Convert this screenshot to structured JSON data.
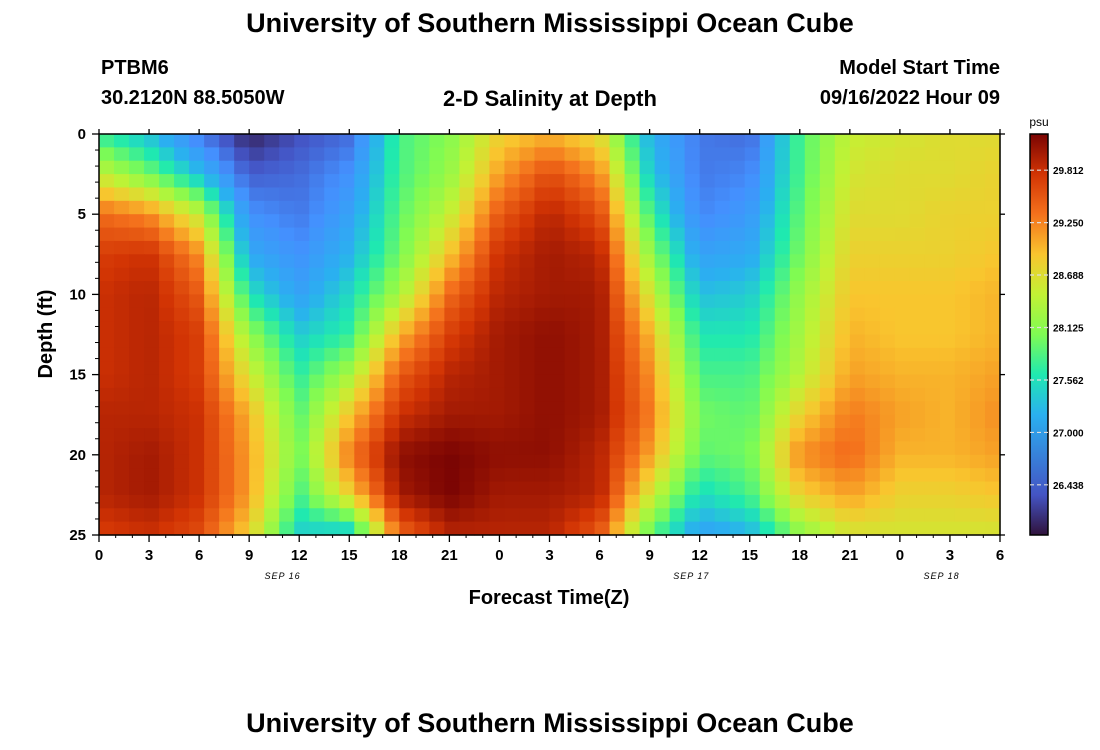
{
  "header": {
    "title": "University of Southern Mississippi Ocean Cube",
    "station_id": "PTBM6",
    "station_coords": "30.2120N  88.5050W",
    "subtitle": "2-D Salinity at Depth",
    "model_label": "Model Start Time",
    "model_time": "09/16/2022 Hour 09"
  },
  "footer": {
    "title": "University of Southern Mississippi Ocean Cube"
  },
  "chart_data": {
    "type": "heatmap",
    "title": "2-D Salinity at Depth",
    "xlabel": "Forecast Time(Z)",
    "ylabel": "Depth (ft)",
    "x_range_hours": [
      0,
      54
    ],
    "y_range_ft": [
      0,
      25
    ],
    "x_ticks": [
      "0",
      "3",
      "6",
      "9",
      "12",
      "15",
      "18",
      "21",
      "0",
      "3",
      "6",
      "9",
      "12",
      "15",
      "18",
      "21",
      "0",
      "3",
      "6"
    ],
    "y_ticks": [
      "0",
      "5",
      "10",
      "15",
      "20",
      "25"
    ],
    "date_labels": [
      {
        "label": "SEP 16",
        "hour": 11
      },
      {
        "label": "SEP 17",
        "hour": 35.5
      },
      {
        "label": "SEP 18",
        "hour": 50.5
      }
    ],
    "colorbar": {
      "unit": "psu",
      "min": 25.9,
      "max": 30.2,
      "ticks": [
        "29.812",
        "29.250",
        "28.688",
        "28.125",
        "27.562",
        "27.000",
        "26.438"
      ]
    },
    "grid_hours": [
      0,
      3,
      6,
      9,
      12,
      15,
      18,
      21,
      24,
      27,
      30,
      33,
      36,
      39,
      42,
      45,
      48,
      51,
      54
    ],
    "grid_depths": [
      0,
      2.5,
      5,
      7.5,
      10,
      12.5,
      15,
      17.5,
      20,
      22.5,
      25
    ],
    "salinity": [
      [
        27.7,
        27.3,
        26.6,
        26.0,
        26.3,
        26.5,
        27.8,
        28.1,
        28.8,
        29.0,
        28.7,
        27.2,
        26.6,
        26.5,
        27.8,
        28.5,
        28.6,
        28.7,
        28.7
      ],
      [
        28.5,
        28.0,
        27.3,
        26.4,
        26.5,
        26.8,
        27.8,
        28.2,
        29.1,
        29.6,
        29.2,
        27.4,
        26.6,
        26.7,
        27.8,
        28.6,
        28.7,
        28.7,
        28.8
      ],
      [
        29.4,
        29.2,
        28.5,
        26.8,
        26.6,
        27.0,
        27.9,
        28.5,
        29.5,
        29.9,
        29.6,
        27.8,
        26.7,
        26.9,
        27.9,
        28.7,
        28.7,
        28.8,
        28.8
      ],
      [
        29.7,
        29.8,
        29.2,
        27.1,
        26.8,
        27.2,
        28.0,
        28.9,
        29.8,
        30.0,
        29.9,
        28.2,
        27.0,
        27.1,
        28.0,
        28.8,
        28.8,
        28.8,
        28.9
      ],
      [
        29.8,
        29.9,
        29.5,
        27.6,
        27.0,
        27.5,
        28.3,
        29.4,
        29.9,
        30.0,
        30.0,
        28.6,
        27.3,
        27.4,
        28.2,
        28.9,
        28.9,
        28.9,
        29.0
      ],
      [
        29.8,
        29.9,
        29.7,
        28.2,
        27.4,
        27.7,
        29.0,
        29.7,
        30.0,
        30.1,
        30.0,
        29.0,
        27.6,
        27.6,
        28.3,
        29.0,
        28.9,
        28.9,
        29.0
      ],
      [
        29.8,
        29.9,
        29.7,
        28.6,
        27.7,
        28.3,
        29.5,
        29.9,
        30.0,
        30.1,
        30.0,
        29.2,
        27.8,
        27.8,
        28.4,
        29.1,
        29.0,
        29.0,
        29.1
      ],
      [
        29.9,
        29.9,
        29.8,
        29.0,
        27.9,
        28.9,
        29.8,
        30.0,
        30.0,
        30.1,
        30.0,
        29.3,
        28.0,
        27.9,
        28.8,
        29.3,
        29.1,
        29.0,
        29.2
      ],
      [
        29.9,
        30.0,
        29.8,
        29.1,
        28.0,
        29.3,
        30.1,
        30.2,
        30.1,
        30.1,
        29.9,
        29.1,
        27.9,
        28.0,
        29.2,
        29.4,
        29.0,
        29.0,
        29.1
      ],
      [
        29.9,
        30.0,
        29.8,
        29.1,
        27.8,
        28.8,
        30.0,
        30.2,
        30.0,
        30.0,
        29.9,
        28.6,
        27.5,
        27.8,
        28.8,
        29.1,
        28.8,
        28.8,
        28.9
      ],
      [
        29.7,
        29.8,
        29.6,
        28.8,
        27.4,
        27.3,
        29.4,
        29.9,
        29.9,
        29.9,
        29.5,
        27.9,
        27.0,
        27.2,
        28.1,
        28.6,
        28.6,
        28.6,
        28.6
      ]
    ]
  }
}
